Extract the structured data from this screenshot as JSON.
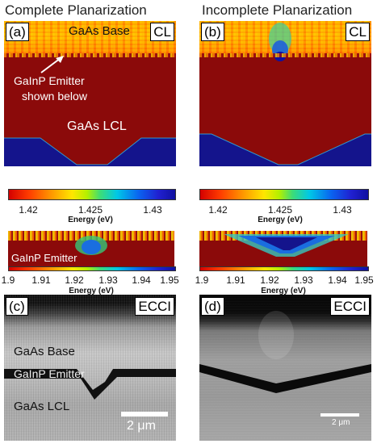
{
  "titles": {
    "left": "Complete Planarization",
    "right": "Incomplete Planarization"
  },
  "panels": {
    "a": {
      "label": "(a)",
      "tag": "CL",
      "base_text": "GaAs Base",
      "emitter_note_line1": "GaInP Emitter",
      "emitter_note_line2": "shown below",
      "lcl_text": "GaAs LCL"
    },
    "b": {
      "label": "(b)",
      "tag": "CL"
    },
    "c": {
      "label": "(c)",
      "tag": "ECCI",
      "base_text": "GaAs Base",
      "emitter_text": "GaInP Emitter",
      "lcl_text": "GaAs LCL",
      "scale": "2 μm"
    },
    "d": {
      "label": "(d)",
      "tag": "ECCI",
      "scale": "2 μm"
    }
  },
  "colorbar_top": {
    "ticks": [
      "1.42",
      "1.425",
      "1.43"
    ],
    "axis": "Energy (eV)"
  },
  "colorbar_bottom": {
    "ticks": [
      "1.9",
      "1.91",
      "1.92",
      "1.93",
      "1.94",
      "1.95"
    ],
    "axis": "Energy (eV)"
  },
  "emitter_strip_label": "GaInP Emitter"
}
